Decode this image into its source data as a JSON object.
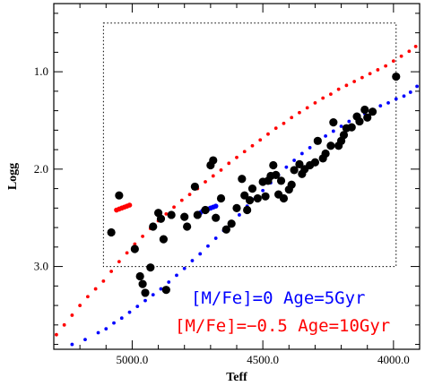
{
  "chart_data": {
    "type": "scatter",
    "title": "",
    "xlabel": "Teff",
    "ylabel": "Logg",
    "xlim": [
      5300,
      3900
    ],
    "ylim": [
      3.85,
      0.3
    ],
    "x_ticks": [
      5000,
      4500,
      4000
    ],
    "x_tick_labels": [
      "5000.0",
      "4500.0",
      "4000.0"
    ],
    "y_ticks": [
      1.0,
      2.0,
      3.0
    ],
    "y_tick_labels": [
      "1.0",
      "2.0",
      "3.0"
    ],
    "box": {
      "teff": [
        5110,
        3990
      ],
      "logg": [
        0.5,
        3.0
      ]
    },
    "legend_position": "bottom-right",
    "series": [
      {
        "name": "[M/Fe]=0 Age=5Gyr",
        "color": "#0000ff",
        "marker": "small-dot",
        "x": [
          5230,
          5180,
          5130,
          5100,
          5070,
          5040,
          5010,
          4980,
          4950,
          4920,
          4890,
          4860,
          4830,
          4800,
          4770,
          4740,
          4710,
          4680,
          4650,
          4620,
          4590,
          4560,
          4530,
          4500,
          4470,
          4440,
          4410,
          4380,
          4350,
          4320,
          4290,
          4260,
          4230,
          4200,
          4170,
          4140,
          4110,
          4080,
          4050,
          4020,
          3990,
          3960,
          3935,
          3910
        ],
        "y": [
          3.8,
          3.75,
          3.68,
          3.64,
          3.58,
          3.53,
          3.47,
          3.41,
          3.35,
          3.29,
          3.23,
          3.16,
          3.09,
          3.02,
          2.94,
          2.87,
          2.79,
          2.71,
          2.63,
          2.55,
          2.47,
          2.38,
          2.3,
          2.22,
          2.14,
          2.06,
          1.98,
          1.91,
          1.84,
          1.78,
          1.72,
          1.66,
          1.61,
          1.56,
          1.51,
          1.47,
          1.43,
          1.39,
          1.35,
          1.32,
          1.28,
          1.25,
          1.21,
          1.15
        ]
      },
      {
        "name": "[M/Fe]=−0.5 Age=10Gyr",
        "color": "#ff0000",
        "marker": "small-dot",
        "x": [
          5290,
          5260,
          5230,
          5200,
          5170,
          5140,
          5110,
          5080,
          5050,
          5020,
          4990,
          4960,
          4930,
          4900,
          4870,
          4840,
          4810,
          4780,
          4750,
          4720,
          4690,
          4660,
          4630,
          4600,
          4570,
          4540,
          4510,
          4480,
          4450,
          4420,
          4390,
          4360,
          4330,
          4300,
          4270,
          4240,
          4210,
          4180,
          4150,
          4120,
          4090,
          4060,
          4030,
          4000,
          3970,
          3940,
          3915
        ],
        "y": [
          3.7,
          3.6,
          3.5,
          3.4,
          3.31,
          3.23,
          3.15,
          3.05,
          2.95,
          2.86,
          2.77,
          2.69,
          2.61,
          2.53,
          2.46,
          2.39,
          2.32,
          2.26,
          2.2,
          2.13,
          2.07,
          2.01,
          1.94,
          1.88,
          1.82,
          1.76,
          1.7,
          1.64,
          1.58,
          1.53,
          1.47,
          1.42,
          1.37,
          1.32,
          1.27,
          1.23,
          1.18,
          1.14,
          1.1,
          1.06,
          1.02,
          0.98,
          0.94,
          0.89,
          0.84,
          0.79,
          0.74
        ]
      },
      {
        "name": "",
        "color": "#ff0000",
        "marker": "thick-segment",
        "x": [
          5060,
          5050,
          5040,
          5030,
          5020,
          5010
        ],
        "y": [
          2.42,
          2.41,
          2.4,
          2.39,
          2.38,
          2.37
        ]
      },
      {
        "name": "",
        "color": "#0000ff",
        "marker": "thick-segment",
        "x": [
          4740,
          4730,
          4720,
          4710,
          4700,
          4690,
          4680
        ],
        "y": [
          2.45,
          2.43,
          2.42,
          2.41,
          2.4,
          2.39,
          2.38
        ]
      },
      {
        "name": "",
        "color": "#000000",
        "marker": "large-dot",
        "x": [
          5080,
          5050,
          4990,
          4970,
          4960,
          4950,
          4930,
          4920,
          4900,
          4890,
          4880,
          4870,
          4850,
          4800,
          4790,
          4760,
          4750,
          4720,
          4700,
          4690,
          4680,
          4660,
          4640,
          4620,
          4600,
          4580,
          4570,
          4560,
          4550,
          4540,
          4520,
          4500,
          4490,
          4480,
          4470,
          4460,
          4450,
          4440,
          4430,
          4420,
          4400,
          4390,
          4380,
          4360,
          4350,
          4340,
          4320,
          4300,
          4290,
          4270,
          4260,
          4240,
          4230,
          4210,
          4200,
          4190,
          4180,
          4160,
          4140,
          4130,
          4110,
          4100,
          4080,
          3990
        ],
        "y": [
          2.65,
          2.27,
          2.82,
          3.1,
          3.18,
          3.27,
          3.01,
          2.59,
          2.45,
          2.51,
          2.72,
          3.24,
          2.47,
          2.49,
          2.59,
          2.18,
          2.47,
          2.42,
          1.96,
          1.91,
          2.5,
          2.3,
          2.62,
          2.56,
          2.4,
          2.1,
          2.27,
          2.42,
          2.32,
          2.2,
          2.3,
          2.13,
          2.28,
          2.12,
          2.07,
          1.96,
          2.06,
          2.26,
          2.12,
          2.3,
          2.21,
          2.16,
          2.01,
          1.95,
          2.05,
          2.0,
          1.96,
          1.93,
          1.71,
          1.89,
          1.84,
          1.76,
          1.52,
          1.76,
          1.71,
          1.65,
          1.58,
          1.57,
          1.46,
          1.51,
          1.39,
          1.47,
          1.41,
          1.05
        ]
      }
    ]
  }
}
